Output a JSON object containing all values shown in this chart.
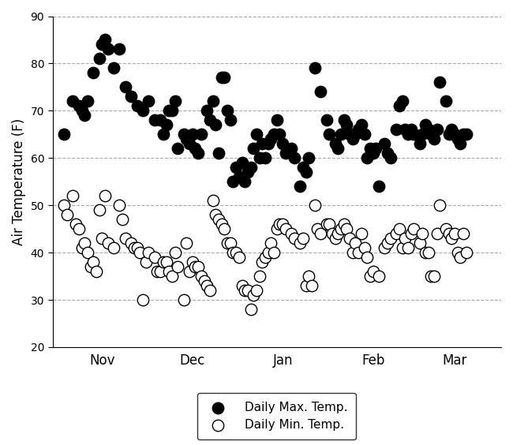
{
  "ylabel": "Air Temperature (F)",
  "ylim": [
    20,
    90
  ],
  "yticks": [
    20,
    30,
    40,
    50,
    60,
    70,
    80,
    90
  ],
  "month_labels": [
    "Nov",
    "Dec",
    "Jan",
    "Feb",
    "Mar"
  ],
  "month_positions": [
    15,
    46,
    77,
    108,
    136
  ],
  "xlim": [
    -2,
    152
  ],
  "max_temps": [
    2,
    65,
    5,
    72,
    7,
    71,
    8,
    70,
    9,
    69,
    10,
    72,
    12,
    78,
    14,
    81,
    15,
    84,
    16,
    85,
    17,
    83,
    19,
    79,
    21,
    83,
    23,
    75,
    25,
    73,
    27,
    71,
    29,
    70,
    31,
    72,
    33,
    68,
    35,
    68,
    36,
    65,
    37,
    67,
    38,
    70,
    39,
    70,
    40,
    72,
    41,
    62,
    43,
    65,
    44,
    64,
    45,
    63,
    46,
    65,
    47,
    62,
    48,
    61,
    49,
    65,
    51,
    70,
    52,
    68,
    53,
    72,
    54,
    67,
    55,
    61,
    56,
    77,
    57,
    77,
    58,
    70,
    59,
    68,
    60,
    55,
    61,
    58,
    62,
    56,
    63,
    59,
    64,
    55,
    65,
    57,
    66,
    58,
    67,
    62,
    68,
    65,
    69,
    60,
    70,
    63,
    71,
    60,
    72,
    63,
    73,
    64,
    74,
    65,
    75,
    68,
    76,
    65,
    77,
    63,
    78,
    61,
    80,
    62,
    81,
    60,
    83,
    54,
    84,
    58,
    85,
    57,
    86,
    60,
    88,
    79,
    90,
    74,
    92,
    68,
    93,
    65,
    95,
    63,
    96,
    62,
    97,
    65,
    98,
    68,
    99,
    67,
    100,
    65,
    101,
    64,
    102,
    65,
    103,
    66,
    104,
    67,
    105,
    65,
    106,
    60,
    107,
    62,
    108,
    61,
    109,
    62,
    110,
    54,
    112,
    63,
    113,
    61,
    114,
    60,
    116,
    66,
    117,
    71,
    118,
    72,
    119,
    66,
    120,
    65,
    121,
    66,
    122,
    65,
    124,
    63,
    125,
    65,
    126,
    67,
    127,
    66,
    128,
    65,
    129,
    64,
    130,
    66,
    131,
    76,
    133,
    72,
    134,
    65,
    135,
    66,
    136,
    65,
    137,
    64,
    138,
    63,
    139,
    65,
    140,
    65
  ],
  "min_temps": [
    2,
    50,
    3,
    48,
    5,
    52,
    6,
    46,
    7,
    45,
    8,
    41,
    9,
    42,
    10,
    40,
    11,
    37,
    12,
    38,
    13,
    36,
    14,
    49,
    15,
    43,
    16,
    52,
    17,
    42,
    19,
    41,
    21,
    50,
    22,
    47,
    23,
    43,
    25,
    42,
    26,
    41,
    27,
    41,
    28,
    40,
    29,
    30,
    30,
    38,
    31,
    40,
    33,
    39,
    34,
    36,
    35,
    36,
    36,
    38,
    37,
    38,
    38,
    36,
    39,
    35,
    40,
    40,
    41,
    37,
    43,
    30,
    44,
    42,
    45,
    36,
    46,
    38,
    47,
    37,
    48,
    37,
    49,
    35,
    50,
    34,
    51,
    33,
    52,
    32,
    53,
    51,
    54,
    48,
    55,
    47,
    56,
    46,
    57,
    45,
    58,
    42,
    59,
    42,
    60,
    40,
    61,
    40,
    62,
    39,
    63,
    33,
    64,
    32,
    65,
    32,
    66,
    28,
    67,
    31,
    68,
    32,
    69,
    35,
    70,
    38,
    71,
    39,
    72,
    40,
    73,
    42,
    74,
    40,
    75,
    45,
    76,
    46,
    77,
    46,
    78,
    45,
    80,
    44,
    81,
    43,
    83,
    42,
    84,
    43,
    85,
    33,
    86,
    35,
    87,
    33,
    88,
    50,
    89,
    45,
    90,
    44,
    92,
    46,
    93,
    46,
    94,
    44,
    95,
    43,
    96,
    44,
    97,
    45,
    98,
    46,
    99,
    45,
    100,
    43,
    101,
    40,
    102,
    42,
    103,
    40,
    104,
    44,
    105,
    41,
    106,
    39,
    107,
    35,
    108,
    36,
    110,
    35,
    112,
    41,
    113,
    42,
    114,
    43,
    116,
    44,
    117,
    45,
    118,
    41,
    119,
    43,
    120,
    41,
    121,
    44,
    122,
    45,
    124,
    42,
    125,
    44,
    126,
    40,
    127,
    40,
    128,
    35,
    129,
    35,
    130,
    44,
    131,
    50,
    133,
    45,
    134,
    44,
    135,
    43,
    136,
    44,
    137,
    40,
    138,
    39,
    139,
    44,
    140,
    40
  ],
  "grid_color": "#aaaaaa",
  "marker_size": 6
}
